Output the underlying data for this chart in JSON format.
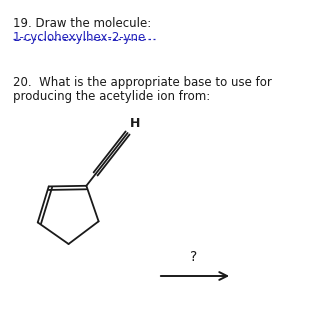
{
  "q19_number": "19. Draw the molecule:",
  "q19_molecule": "1-cyclohexylhex-2-yne",
  "q20_text1": "20.  What is the appropriate base to use for",
  "q20_text2": "producing the acetylide ion from:",
  "h_label": "H",
  "question_mark": "?",
  "bg_color": "#ffffff",
  "text_color": "#1a1a1a",
  "link_color": "#2222bb",
  "molecule_color": "#1a1a1a",
  "fig_width": 3.32,
  "fig_height": 3.14,
  "dpi": 100
}
